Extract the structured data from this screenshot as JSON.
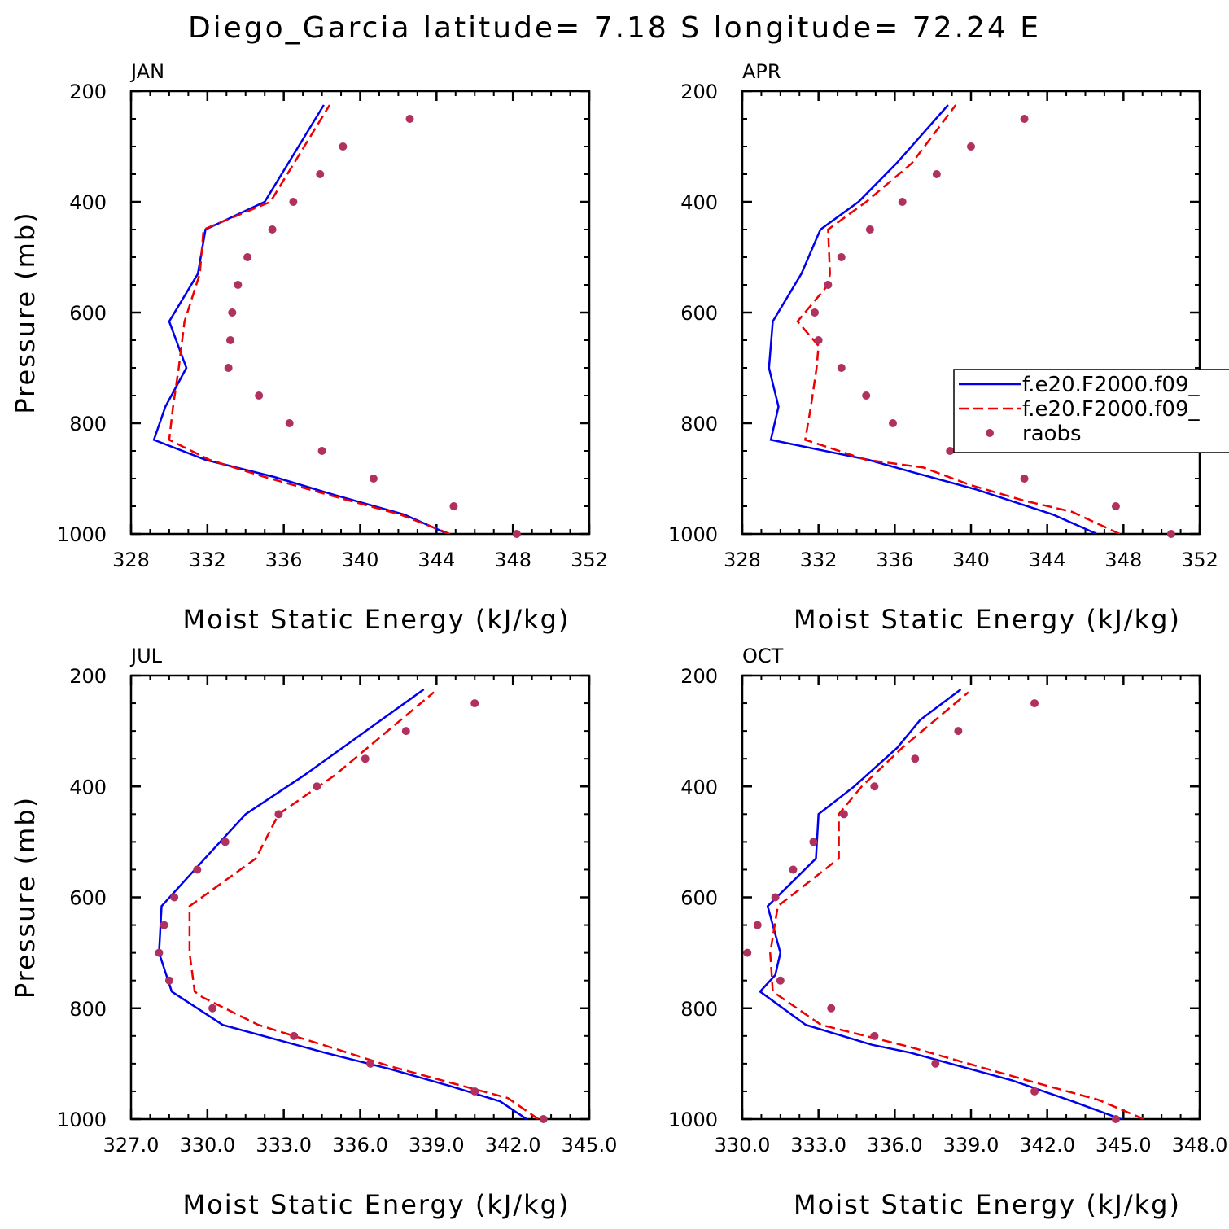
{
  "figure": {
    "title": "Diego_Garcia  latitude= 7.18 S longitude= 72.24 E"
  },
  "chart_data": [
    {
      "type": "line",
      "title": "JAN",
      "xlabel": "Moist Static Energy (kJ/kg)",
      "ylabel": "Pressure (mb)",
      "xlim": [
        328,
        352
      ],
      "xticks": [
        "328",
        "332",
        "336",
        "340",
        "344",
        "348",
        "352"
      ],
      "ylim": [
        200,
        1000
      ],
      "y_inverted": true,
      "yticks": [
        "200",
        "400",
        "600",
        "800",
        "1000"
      ],
      "grid": false,
      "series": [
        {
          "name": "f.e20.F2000.f09_",
          "style": "solid",
          "color": "#0000ee",
          "points": [
            [
              344.6,
              1000
            ],
            [
              342.3,
              965
            ],
            [
              338.7,
              930
            ],
            [
              335.5,
              897
            ],
            [
              331.9,
              866
            ],
            [
              329.2,
              830
            ],
            [
              329.8,
              770
            ],
            [
              330.9,
              700
            ],
            [
              330.0,
              616
            ],
            [
              331.5,
              530
            ],
            [
              331.9,
              450
            ],
            [
              335,
              400
            ],
            [
              338.1,
              225
            ]
          ]
        },
        {
          "name": "f.e20.F2000.f09_",
          "style": "dashed",
          "color": "#ee0000",
          "points": [
            [
              344.7,
              1000
            ],
            [
              342.1,
              965
            ],
            [
              338.4,
              930
            ],
            [
              335.0,
              897
            ],
            [
              332.1,
              866
            ],
            [
              330.0,
              830
            ],
            [
              330.2,
              770
            ],
            [
              330.5,
              700
            ],
            [
              330.8,
              616
            ],
            [
              331.6,
              530
            ],
            [
              331.8,
              450
            ],
            [
              335.3,
              400
            ],
            [
              338.4,
              225
            ]
          ]
        },
        {
          "name": "raobs",
          "style": "dots",
          "color": "#b03060",
          "points": [
            [
              342.6,
              250
            ],
            [
              339.1,
              300
            ],
            [
              337.9,
              350
            ],
            [
              336.5,
              400
            ],
            [
              335.4,
              450
            ],
            [
              334.1,
              500
            ],
            [
              333.6,
              550
            ],
            [
              333.3,
              600
            ],
            [
              333.2,
              650
            ],
            [
              333.1,
              700
            ],
            [
              334.7,
              750
            ],
            [
              336.3,
              800
            ],
            [
              338.0,
              850
            ],
            [
              340.7,
              900
            ],
            [
              344.9,
              950
            ],
            [
              348.2,
              1000
            ]
          ]
        }
      ]
    },
    {
      "type": "line",
      "title": "APR",
      "xlabel": "Moist Static Energy (kJ/kg)",
      "ylabel": "",
      "xlim": [
        328,
        352
      ],
      "xticks": [
        "328",
        "332",
        "336",
        "340",
        "344",
        "348",
        "352"
      ],
      "ylim": [
        200,
        1000
      ],
      "y_inverted": true,
      "yticks": [
        "200",
        "400",
        "600",
        "800",
        "1000"
      ],
      "grid": false,
      "legend": "right-middle",
      "legend_entries": [
        {
          "label": "f.e20.F2000.f09_",
          "style": "solid",
          "color": "#0000ee"
        },
        {
          "label": "f.e20.F2000.f09_",
          "style": "dashed",
          "color": "#ee0000"
        },
        {
          "label": "raobs",
          "style": "dots",
          "color": "#b03060"
        }
      ],
      "series": [
        {
          "name": "f.e20.F2000.f09_",
          "style": "solid",
          "color": "#0000ee",
          "points": [
            [
              346.6,
              1000
            ],
            [
              344.3,
              965
            ],
            [
              340.3,
              920
            ],
            [
              337.1,
              890
            ],
            [
              334.6,
              866
            ],
            [
              329.5,
              830
            ],
            [
              329.9,
              770
            ],
            [
              329.4,
              700
            ],
            [
              329.6,
              616
            ],
            [
              331.1,
              530
            ],
            [
              332.1,
              450
            ],
            [
              334.1,
              400
            ],
            [
              336.1,
              330
            ],
            [
              338.8,
              225
            ]
          ]
        },
        {
          "name": "f.e20.F2000.f09_",
          "style": "dashed",
          "color": "#ee0000",
          "points": [
            [
              347.8,
              1000
            ],
            [
              345.3,
              960
            ],
            [
              342.8,
              940
            ],
            [
              340,
              912
            ],
            [
              337.5,
              880
            ],
            [
              334.5,
              866
            ],
            [
              331.3,
              830
            ],
            [
              331.6,
              770
            ],
            [
              331.9,
              700
            ],
            [
              332.0,
              660
            ],
            [
              330.9,
              616
            ],
            [
              332.5,
              550
            ],
            [
              332.6,
              530
            ],
            [
              332.5,
              450
            ],
            [
              334.5,
              400
            ],
            [
              336.9,
              330
            ],
            [
              339.2,
              225
            ]
          ]
        },
        {
          "name": "raobs",
          "style": "dots",
          "color": "#b03060",
          "points": [
            [
              342.8,
              250
            ],
            [
              340.0,
              300
            ],
            [
              338.2,
              350
            ],
            [
              336.4,
              400
            ],
            [
              334.7,
              450
            ],
            [
              333.2,
              500
            ],
            [
              332.5,
              550
            ],
            [
              331.8,
              600
            ],
            [
              332.0,
              650
            ],
            [
              333.2,
              700
            ],
            [
              334.5,
              750
            ],
            [
              335.9,
              800
            ],
            [
              338.9,
              850
            ],
            [
              342.8,
              900
            ],
            [
              347.6,
              950
            ],
            [
              350.5,
              1000
            ]
          ]
        }
      ]
    },
    {
      "type": "line",
      "title": "JUL",
      "xlabel": "Moist Static Energy (kJ/kg)",
      "ylabel": "Pressure (mb)",
      "xlim": [
        327,
        345
      ],
      "xticks": [
        "327.0",
        "330.0",
        "333.0",
        "336.0",
        "339.0",
        "342.0",
        "345.0"
      ],
      "ylim": [
        200,
        1000
      ],
      "y_inverted": true,
      "yticks": [
        "200",
        "400",
        "600",
        "800",
        "1000"
      ],
      "grid": false,
      "series": [
        {
          "name": "f.e20.F2000.f09_",
          "style": "solid",
          "color": "#0000ee",
          "points": [
            [
              342.7,
              1005
            ],
            [
              341.5,
              968
            ],
            [
              339.5,
              940
            ],
            [
              337.2,
              910
            ],
            [
              334.6,
              880
            ],
            [
              330.6,
              830
            ],
            [
              328.6,
              770
            ],
            [
              328.1,
              700
            ],
            [
              328.2,
              616
            ],
            [
              329.9,
              530
            ],
            [
              331.5,
              450
            ],
            [
              333.8,
              380
            ],
            [
              338.5,
              225
            ]
          ]
        },
        {
          "name": "f.e20.F2000.f09_",
          "style": "dashed",
          "color": "#ee0000",
          "points": [
            [
              343.0,
              1000
            ],
            [
              341.8,
              962
            ],
            [
              340,
              940
            ],
            [
              337.2,
              905
            ],
            [
              334.8,
              870
            ],
            [
              332.0,
              830
            ],
            [
              329.8,
              780
            ],
            [
              329.5,
              770
            ],
            [
              329.3,
              700
            ],
            [
              329.3,
              616
            ],
            [
              331.9,
              530
            ],
            [
              332.8,
              450
            ],
            [
              335.0,
              380
            ],
            [
              338.9,
              230
            ]
          ]
        },
        {
          "name": "raobs",
          "style": "dots",
          "color": "#b03060",
          "points": [
            [
              340.5,
              250
            ],
            [
              337.8,
              300
            ],
            [
              336.2,
              350
            ],
            [
              334.3,
              400
            ],
            [
              332.8,
              450
            ],
            [
              330.7,
              500
            ],
            [
              329.6,
              550
            ],
            [
              328.7,
              600
            ],
            [
              328.3,
              650
            ],
            [
              328.1,
              700
            ],
            [
              328.5,
              750
            ],
            [
              330.2,
              800
            ],
            [
              333.4,
              850
            ],
            [
              336.4,
              900
            ],
            [
              340.5,
              950
            ],
            [
              343.2,
              1000
            ]
          ]
        }
      ]
    },
    {
      "type": "line",
      "title": "OCT",
      "xlabel": "Moist Static Energy (kJ/kg)",
      "ylabel": "",
      "xlim": [
        330,
        348
      ],
      "xticks": [
        "330.0",
        "333.0",
        "336.0",
        "339.0",
        "342.0",
        "345.0",
        "348.0"
      ],
      "ylim": [
        200,
        1000
      ],
      "y_inverted": true,
      "yticks": [
        "200",
        "400",
        "600",
        "800",
        "1000"
      ],
      "grid": false,
      "series": [
        {
          "name": "f.e20.F2000.f09_",
          "style": "solid",
          "color": "#0000ee",
          "points": [
            [
              345.2,
              1005
            ],
            [
              343.0,
              968
            ],
            [
              340.6,
              930
            ],
            [
              336.6,
              880
            ],
            [
              335.1,
              866
            ],
            [
              332.5,
              830
            ],
            [
              330.7,
              770
            ],
            [
              331.3,
              740
            ],
            [
              331.5,
              700
            ],
            [
              331.0,
              616
            ],
            [
              332.9,
              530
            ],
            [
              333.0,
              450
            ],
            [
              334.4,
              400
            ],
            [
              336.1,
              330
            ],
            [
              337.0,
              280
            ],
            [
              338.6,
              225
            ]
          ]
        },
        {
          "name": "f.e20.F2000.f09_",
          "style": "dashed",
          "color": "#ee0000",
          "points": [
            [
              345.8,
              1000
            ],
            [
              344,
              965
            ],
            [
              341.2,
              930
            ],
            [
              336.6,
              870
            ],
            [
              333.1,
              830
            ],
            [
              331.2,
              770
            ],
            [
              331.1,
              700
            ],
            [
              331.4,
              616
            ],
            [
              333.8,
              530
            ],
            [
              333.8,
              450
            ],
            [
              334.7,
              400
            ],
            [
              336.3,
              330
            ],
            [
              338.9,
              230
            ]
          ]
        },
        {
          "name": "raobs",
          "style": "dots",
          "color": "#b03060",
          "points": [
            [
              341.5,
              250
            ],
            [
              338.5,
              300
            ],
            [
              336.8,
              350
            ],
            [
              335.2,
              400
            ],
            [
              334.0,
              450
            ],
            [
              332.8,
              500
            ],
            [
              332.0,
              550
            ],
            [
              331.3,
              600
            ],
            [
              330.6,
              650
            ],
            [
              330.2,
              700
            ],
            [
              331.5,
              750
            ],
            [
              333.5,
              800
            ],
            [
              335.2,
              850
            ],
            [
              337.6,
              900
            ],
            [
              341.5,
              950
            ],
            [
              344.7,
              1000
            ]
          ]
        }
      ]
    }
  ]
}
